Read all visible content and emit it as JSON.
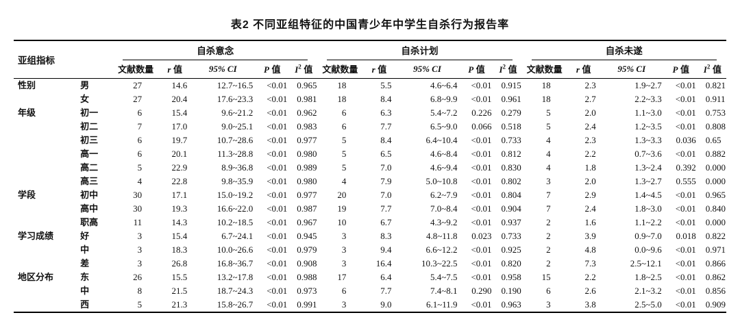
{
  "title": "表2  不同亚组特征的中国青少年中学生自杀行为报告率",
  "colors": {
    "text": "#111111",
    "rule": "#000000",
    "background": "#ffffff"
  },
  "table": {
    "corner_header": "亚组指标",
    "sections": [
      {
        "label": "自杀意念"
      },
      {
        "label": "自杀计划"
      },
      {
        "label": "自杀未遂"
      }
    ],
    "sub_headers": [
      [
        {
          "t": "文献数量"
        }
      ],
      [
        {
          "t": "r",
          "i": true
        },
        {
          "t": " 值"
        }
      ],
      [
        {
          "t": "95% CI",
          "i": true
        }
      ],
      [
        {
          "t": "P",
          "i": true
        },
        {
          "t": " 值"
        }
      ],
      [
        {
          "t": "I",
          "i": true
        },
        {
          "t": "2",
          "sup": true
        },
        {
          "t": " 值"
        }
      ]
    ],
    "rows": [
      {
        "group": "性别",
        "label": "男",
        "ideation": [
          "27",
          "14.6",
          "12.7~16.5",
          "<0.01",
          "0.965"
        ],
        "plan": [
          "18",
          "5.5",
          "4.6~6.4",
          "<0.01",
          "0.915"
        ],
        "attempt": [
          "18",
          "2.3",
          "1.9~2.7",
          "<0.01",
          "0.821"
        ]
      },
      {
        "group": "",
        "label": "女",
        "ideation": [
          "27",
          "20.4",
          "17.6~23.3",
          "<0.01",
          "0.981"
        ],
        "plan": [
          "18",
          "8.4",
          "6.8~9.9",
          "<0.01",
          "0.961"
        ],
        "attempt": [
          "18",
          "2.7",
          "2.2~3.3",
          "<0.01",
          "0.911"
        ]
      },
      {
        "group": "年级",
        "label": "初一",
        "ideation": [
          "6",
          "15.4",
          "9.6~21.2",
          "<0.01",
          "0.962"
        ],
        "plan": [
          "6",
          "6.3",
          "5.4~7.2",
          "0.226",
          "0.279"
        ],
        "attempt": [
          "5",
          "2.0",
          "1.1~3.0",
          "<0.01",
          "0.753"
        ]
      },
      {
        "group": "",
        "label": "初二",
        "ideation": [
          "7",
          "17.0",
          "9.0~25.1",
          "<0.01",
          "0.983"
        ],
        "plan": [
          "6",
          "7.7",
          "6.5~9.0",
          "0.066",
          "0.518"
        ],
        "attempt": [
          "5",
          "2.4",
          "1.2~3.5",
          "<0.01",
          "0.808"
        ]
      },
      {
        "group": "",
        "label": "初三",
        "ideation": [
          "6",
          "19.7",
          "10.7~28.6",
          "<0.01",
          "0.977"
        ],
        "plan": [
          "5",
          "8.4",
          "6.4~10.4",
          "<0.01",
          "0.733"
        ],
        "attempt": [
          "4",
          "2.3",
          "1.3~3.3",
          "0.036",
          "0.65"
        ]
      },
      {
        "group": "",
        "label": "高一",
        "ideation": [
          "6",
          "20.1",
          "11.3~28.8",
          "<0.01",
          "0.980"
        ],
        "plan": [
          "5",
          "6.5",
          "4.6~8.4",
          "<0.01",
          "0.812"
        ],
        "attempt": [
          "4",
          "2.2",
          "0.7~3.6",
          "<0.01",
          "0.882"
        ]
      },
      {
        "group": "",
        "label": "高二",
        "ideation": [
          "5",
          "22.9",
          "8.9~36.8",
          "<0.01",
          "0.989"
        ],
        "plan": [
          "5",
          "7.0",
          "4.6~9.4",
          "<0.01",
          "0.830"
        ],
        "attempt": [
          "4",
          "1.8",
          "1.3~2.4",
          "0.392",
          "0.000"
        ]
      },
      {
        "group": "",
        "label": "高三",
        "ideation": [
          "4",
          "22.8",
          "9.8~35.9",
          "<0.01",
          "0.980"
        ],
        "plan": [
          "4",
          "7.9",
          "5.0~10.8",
          "<0.01",
          "0.802"
        ],
        "attempt": [
          "3",
          "2.0",
          "1.3~2.7",
          "0.555",
          "0.000"
        ]
      },
      {
        "group": "学段",
        "label": "初中",
        "ideation": [
          "30",
          "17.1",
          "15.0~19.2",
          "<0.01",
          "0.977"
        ],
        "plan": [
          "20",
          "7.0",
          "6.2~7.9",
          "<0.01",
          "0.804"
        ],
        "attempt": [
          "7",
          "2.9",
          "1.4~4.5",
          "<0.01",
          "0.965"
        ]
      },
      {
        "group": "",
        "label": "高中",
        "ideation": [
          "30",
          "19.3",
          "16.6~22.0",
          "<0.01",
          "0.987"
        ],
        "plan": [
          "19",
          "7.7",
          "7.0~8.4",
          "<0.01",
          "0.904"
        ],
        "attempt": [
          "7",
          "2.4",
          "1.8~3.0",
          "<0.01",
          "0.840"
        ]
      },
      {
        "group": "",
        "label": "职高",
        "ideation": [
          "11",
          "14.3",
          "10.2~18.5",
          "<0.01",
          "0.967"
        ],
        "plan": [
          "10",
          "6.7",
          "4.3~9.2",
          "<0.01",
          "0.937"
        ],
        "attempt": [
          "2",
          "1.6",
          "1.1~2.2",
          "<0.01",
          "0.000"
        ]
      },
      {
        "group": "学习成绩",
        "label": "好",
        "ideation": [
          "3",
          "15.4",
          "6.7~24.1",
          "<0.01",
          "0.945"
        ],
        "plan": [
          "3",
          "8.3",
          "4.8~11.8",
          "0.023",
          "0.733"
        ],
        "attempt": [
          "2",
          "3.9",
          "0.9~7.0",
          "0.018",
          "0.822"
        ]
      },
      {
        "group": "",
        "label": "中",
        "ideation": [
          "3",
          "18.3",
          "10.0~26.6",
          "<0.01",
          "0.979"
        ],
        "plan": [
          "3",
          "9.4",
          "6.6~12.2",
          "<0.01",
          "0.925"
        ],
        "attempt": [
          "2",
          "4.8",
          "0.0~9.6",
          "<0.01",
          "0.971"
        ]
      },
      {
        "group": "",
        "label": "差",
        "ideation": [
          "3",
          "26.8",
          "16.8~36.7",
          "<0.01",
          "0.908"
        ],
        "plan": [
          "3",
          "16.4",
          "10.3~22.5",
          "<0.01",
          "0.820"
        ],
        "attempt": [
          "2",
          "7.3",
          "2.5~12.1",
          "<0.01",
          "0.866"
        ]
      },
      {
        "group": "地区分布",
        "label": "东",
        "ideation": [
          "26",
          "15.5",
          "13.2~17.8",
          "<0.01",
          "0.988"
        ],
        "plan": [
          "17",
          "6.4",
          "5.4~7.5",
          "<0.01",
          "0.958"
        ],
        "attempt": [
          "15",
          "2.2",
          "1.8~2.5",
          "<0.01",
          "0.862"
        ]
      },
      {
        "group": "",
        "label": "中",
        "ideation": [
          "8",
          "21.5",
          "18.7~24.3",
          "<0.01",
          "0.973"
        ],
        "plan": [
          "6",
          "7.7",
          "7.4~8.1",
          "0.290",
          "0.190"
        ],
        "attempt": [
          "6",
          "2.6",
          "2.1~3.2",
          "<0.01",
          "0.856"
        ]
      },
      {
        "group": "",
        "label": "西",
        "ideation": [
          "5",
          "21.3",
          "15.8~26.7",
          "<0.01",
          "0.991"
        ],
        "plan": [
          "3",
          "9.0",
          "6.1~11.9",
          "<0.01",
          "0.963"
        ],
        "attempt": [
          "3",
          "3.8",
          "2.5~5.0",
          "<0.01",
          "0.909"
        ]
      }
    ]
  }
}
